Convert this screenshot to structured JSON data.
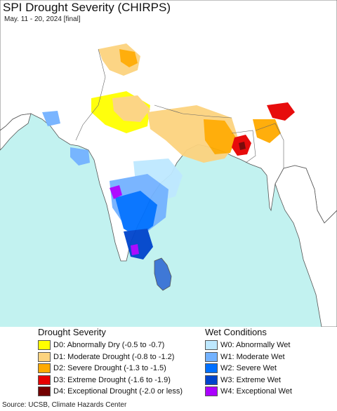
{
  "title": "SPI Drought Severity (CHIRPS)",
  "subtitle": "May. 11 - 20, 2024 [final]",
  "map": {
    "ocean_color": "#c2f2f0",
    "land_color": "#ffffff",
    "border_color": "#555555"
  },
  "legend": {
    "drought": {
      "heading": "Drought Severity",
      "items": [
        {
          "label": "D0: Abnormally Dry (-0.5 to -0.7)",
          "color": "#ffff00"
        },
        {
          "label": "D1: Moderate Drought (-0.8 to -1.2)",
          "color": "#fcd37f"
        },
        {
          "label": "D2: Severe Drought (-1.3 to -1.5)",
          "color": "#ffaa00"
        },
        {
          "label": "D3: Extreme Drought (-1.6 to -1.9)",
          "color": "#e60000"
        },
        {
          "label": "D4: Exceptional Drought (-2.0 or less)",
          "color": "#730000"
        }
      ]
    },
    "wet": {
      "heading": "Wet Conditions",
      "items": [
        {
          "label": "W0: Abnormally Wet",
          "color": "#bee8ff"
        },
        {
          "label": "W1: Moderate Wet",
          "color": "#73b2ff"
        },
        {
          "label": "W2: Severe Wet",
          "color": "#0070ff"
        },
        {
          "label": "W3: Extreme Wet",
          "color": "#0044cc"
        },
        {
          "label": "W4: Exceptional Wet",
          "color": "#aa00ff"
        }
      ]
    }
  },
  "source": "Source: UCSB, Climate Hazards Center"
}
